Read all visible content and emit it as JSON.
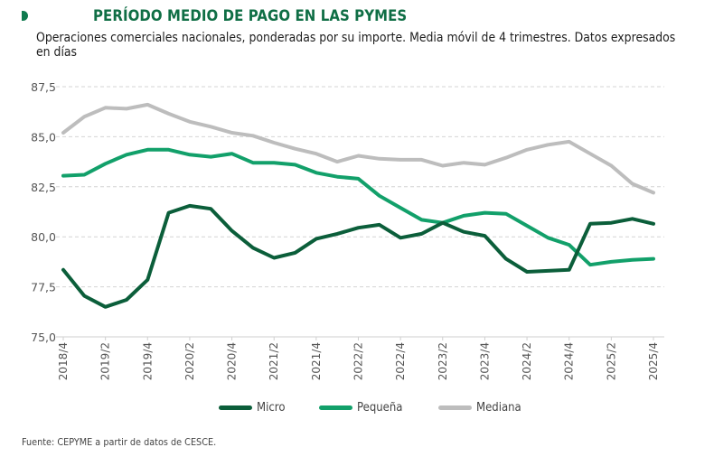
{
  "header": {
    "marker_icon": "half-circle-bullet",
    "title": "PERÍODO MEDIO DE PAGO EN LAS PYMES",
    "subtitle": "Operaciones comerciales nacionales, ponderadas por su importe. Media móvil de 4 trimestres. Datos expresados en días"
  },
  "footer": {
    "source": "Fuente: CEPYME a partir de datos de CESCE."
  },
  "chart_data": {
    "type": "line",
    "title": "PERÍODO MEDIO DE PAGO EN LAS PYMES",
    "subtitle": "Operaciones comerciales nacionales, ponderadas por su importe. Media móvil de 4 trimestres. Datos expresados en días",
    "xlabel": "",
    "ylabel": "",
    "ylim": [
      75.0,
      87.5
    ],
    "yticks": [
      "75,0",
      "77,5",
      "80,0",
      "82,5",
      "85,0",
      "87,5"
    ],
    "ytick_values": [
      75.0,
      77.5,
      80.0,
      82.5,
      85.0,
      87.5
    ],
    "grid": "horizontal dashed",
    "legend_position": "bottom-center",
    "x": [
      "2018/4",
      "2019/1",
      "2019/2",
      "2019/3",
      "2019/4",
      "2020/1",
      "2020/2",
      "2020/3",
      "2020/4",
      "2021/1",
      "2021/2",
      "2021/3",
      "2021/4",
      "2022/1",
      "2022/2",
      "2022/3",
      "2022/4",
      "2023/1",
      "2023/2",
      "2023/3",
      "2023/4",
      "2024/1",
      "2024/2",
      "2024/3",
      "2024/4",
      "2025/1",
      "2025/2",
      "2025/3",
      "2025/4"
    ],
    "xtick_labels": [
      "2018/4",
      "2019/2",
      "2019/4",
      "2020/2",
      "2020/4",
      "2021/2",
      "2021/4",
      "2022/2",
      "2022/4",
      "2023/2",
      "2023/4",
      "2024/2",
      "2024/4",
      "2025/2",
      "2025/4"
    ],
    "series": [
      {
        "name": "Micro",
        "color": "#0b5e3a",
        "values": [
          78.35,
          77.05,
          76.5,
          76.85,
          77.85,
          81.2,
          81.55,
          81.4,
          80.3,
          79.45,
          78.95,
          79.2,
          79.9,
          80.15,
          80.45,
          80.6,
          79.95,
          80.15,
          80.7,
          80.25,
          80.05,
          78.9,
          78.25,
          78.3,
          78.35,
          80.65,
          80.7,
          80.9,
          80.65
        ]
      },
      {
        "name": "Pequeña",
        "color": "#12a06a",
        "values": [
          83.05,
          83.1,
          83.65,
          84.1,
          84.35,
          84.35,
          84.1,
          84.0,
          84.15,
          83.7,
          83.7,
          83.6,
          83.2,
          83.0,
          82.9,
          82.05,
          81.45,
          80.85,
          80.7,
          81.05,
          81.2,
          81.15,
          80.55,
          79.95,
          79.6,
          78.6,
          78.75,
          78.85,
          78.9
        ]
      },
      {
        "name": "Mediana",
        "color": "#bdbdbd",
        "values": [
          85.2,
          86.0,
          86.45,
          86.4,
          86.6,
          86.15,
          85.75,
          85.5,
          85.2,
          85.05,
          84.7,
          84.4,
          84.15,
          83.75,
          84.05,
          83.9,
          83.85,
          83.85,
          83.55,
          83.7,
          83.6,
          83.95,
          84.35,
          84.6,
          84.75,
          84.15,
          83.55,
          82.65,
          82.2
        ]
      }
    ]
  }
}
